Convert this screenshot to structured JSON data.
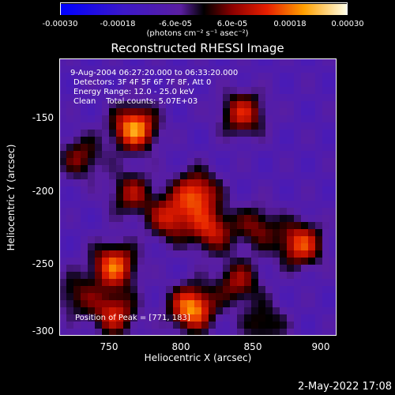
{
  "colorbar": {
    "min": -0.0003,
    "max": 0.0003,
    "tick_labels": [
      "-0.00030",
      "-0.00018",
      "-6.0e-05",
      "6.0e-05",
      "0.00018",
      "0.00030"
    ],
    "unit_label": "(photons cm⁻² s⁻¹ asec⁻²)"
  },
  "annotations": {
    "time_range": "9-Aug-2004 06:27:20.000 to 06:33:20.000",
    "detectors": "Detectors: 3F 4F 5F 6F 7F 8F, Att 0",
    "energy_range": "Energy Range: 12.0 - 25.0 keV",
    "method_counts": "Clean    Total counts: 5.07E+03",
    "peak_position": "Position of Peak = [771, 183]"
  },
  "timestamp": "2-May-2022 17:08",
  "chart_data": {
    "type": "heatmap",
    "title": "Reconstructed RHESSI Image",
    "xlabel": "Heliocentric X (arcsec)",
    "ylabel": "Heliocentric Y (arcsec)",
    "xlim": [
      718,
      910
    ],
    "ylim": [
      -303,
      -112
    ],
    "x_ticks": [
      750,
      800,
      850,
      900
    ],
    "y_ticks": [
      -150,
      -200,
      -250,
      -300
    ],
    "colorscale_range": [
      -0.0003,
      0.0003
    ],
    "sources": [
      {
        "x": 770,
        "y": -160,
        "value": 0.0003
      },
      {
        "x": 813,
        "y": -205,
        "value": 0.00024
      },
      {
        "x": 795,
        "y": -222,
        "value": 0.0002
      },
      {
        "x": 845,
        "y": -150,
        "value": 0.0002
      },
      {
        "x": 823,
        "y": -230,
        "value": 0.0002
      },
      {
        "x": 885,
        "y": -240,
        "value": 0.00024
      },
      {
        "x": 756,
        "y": -255,
        "value": 0.00026
      },
      {
        "x": 810,
        "y": -284,
        "value": 0.0003
      },
      {
        "x": 756,
        "y": -288,
        "value": 0.0002
      },
      {
        "x": 842,
        "y": -266,
        "value": 0.00016
      },
      {
        "x": 768,
        "y": -205,
        "value": 0.00016
      },
      {
        "x": 733,
        "y": -180,
        "value": 0.00014
      },
      {
        "x": 855,
        "y": -228,
        "value": 0.00014
      },
      {
        "x": 730,
        "y": -275,
        "value": 0.00012
      },
      {
        "x": 860,
        "y": -295,
        "value": 0.00012
      }
    ]
  }
}
